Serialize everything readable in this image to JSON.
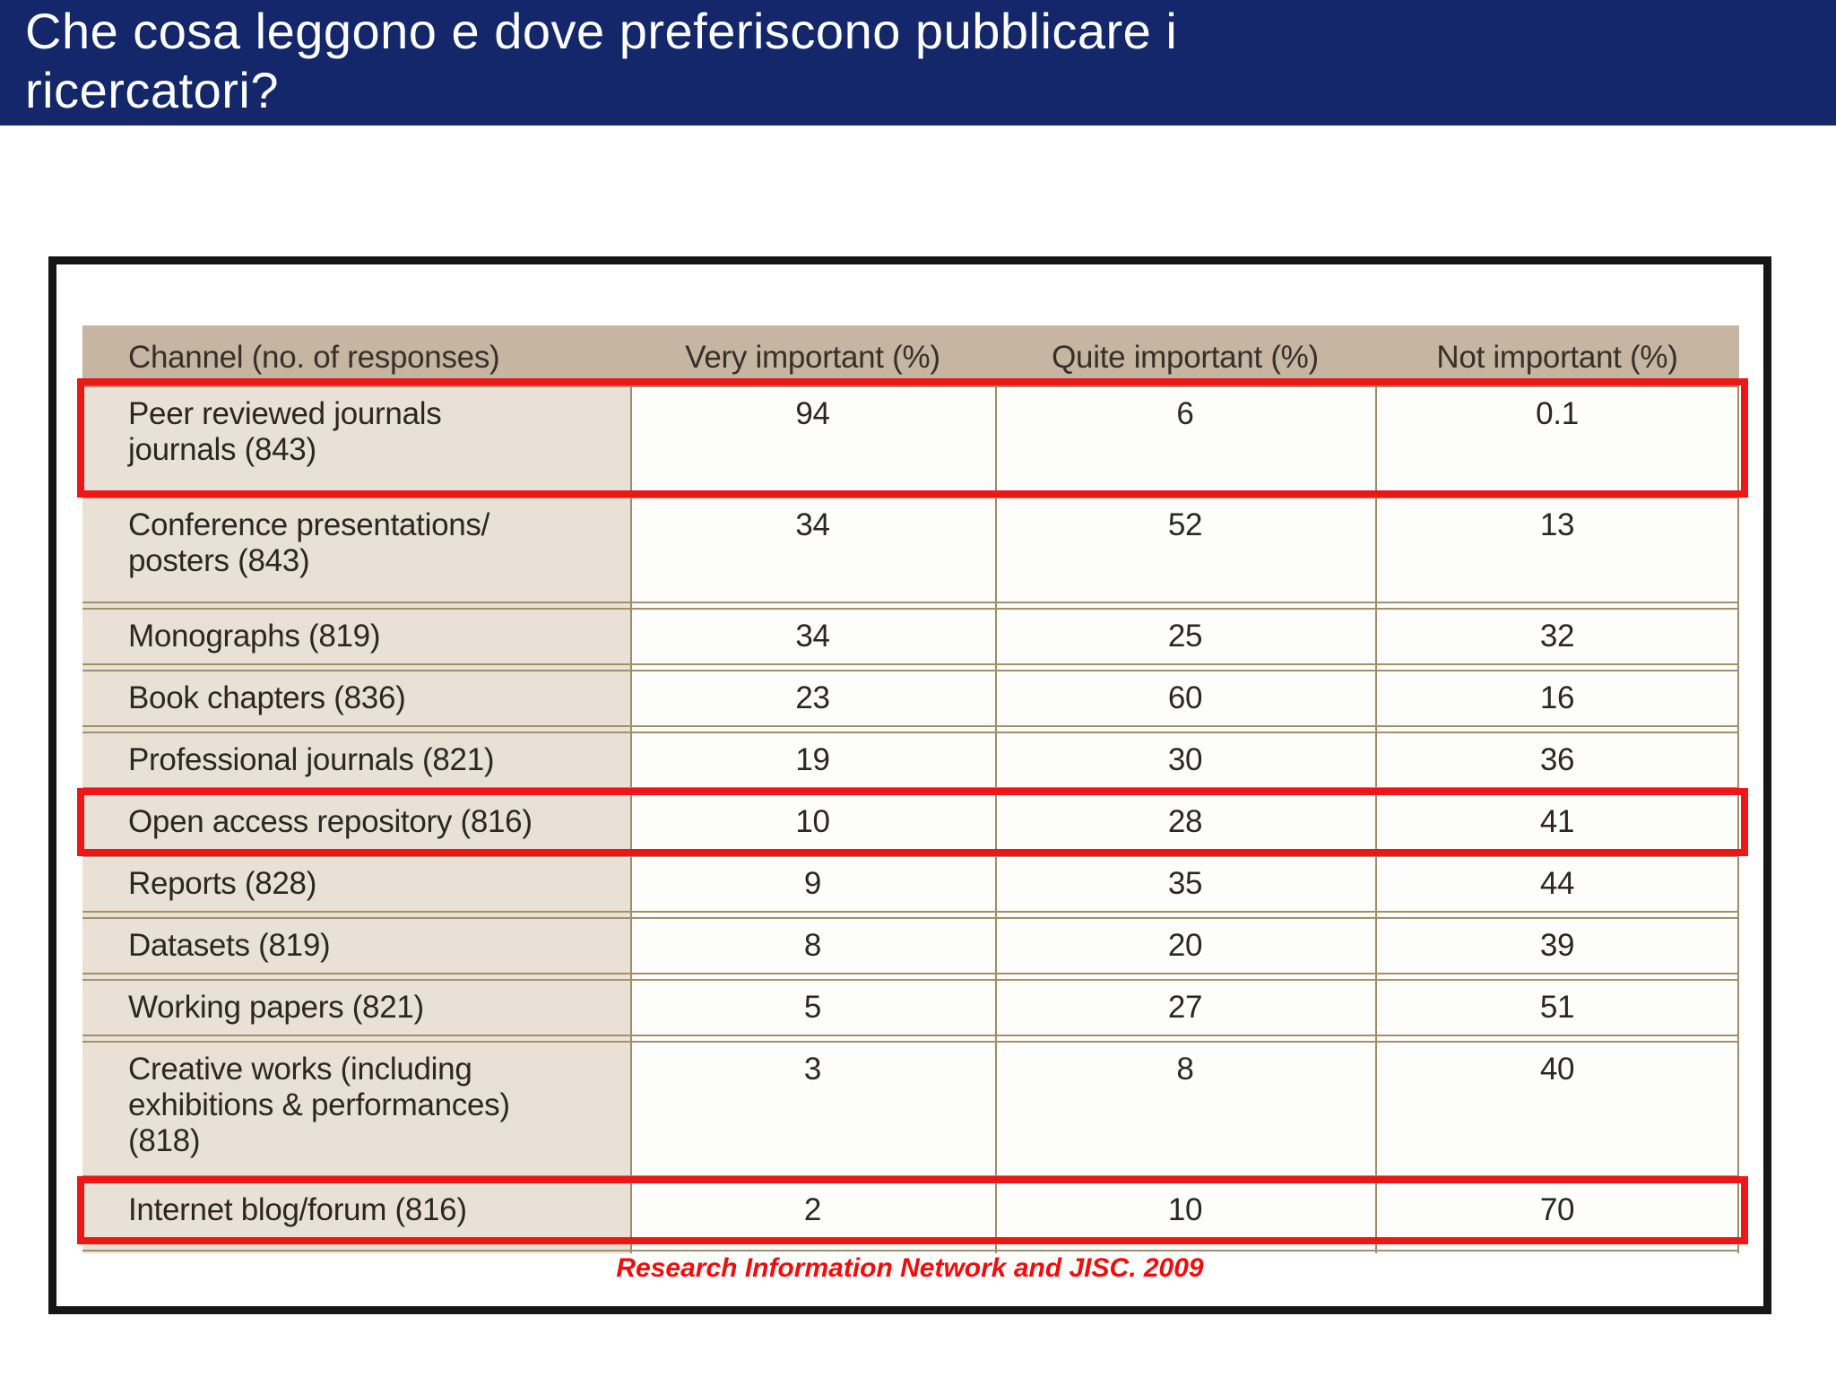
{
  "slide": {
    "title": "Che cosa leggono e dove preferiscono pubblicare i\nricercatori?",
    "caption": "Research Information Network and JISC. 2009"
  },
  "colors": {
    "title_bar_navy": "#13276a",
    "header_tan": "#c5b5a1",
    "label_beige": "#e9e1d5",
    "grid_line_tan": "#9f8c66",
    "highlight_red": "#ee1616",
    "caption_red": "#f40b0b",
    "frame_black": "#161616"
  },
  "table": {
    "columns": [
      "Channel (no. of responses)",
      "Very important (%)",
      "Quite important (%)",
      "Not important (%)"
    ],
    "rows": [
      {
        "label_lines": [
          "Peer reviewed journals",
          "journals (843)"
        ],
        "values": [
          "94",
          "6",
          "0.1"
        ],
        "highlighted": true
      },
      {
        "label_lines": [
          "Conference presentations/",
          "posters (843)"
        ],
        "values": [
          "34",
          "52",
          "13"
        ],
        "highlighted": false
      },
      {
        "label_lines": [
          "Monographs (819)"
        ],
        "values": [
          "34",
          "25",
          "32"
        ],
        "highlighted": false
      },
      {
        "label_lines": [
          "Book chapters (836)"
        ],
        "values": [
          "23",
          "60",
          "16"
        ],
        "highlighted": false
      },
      {
        "label_lines": [
          "Professional journals (821)"
        ],
        "values": [
          "19",
          "30",
          "36"
        ],
        "highlighted": false
      },
      {
        "label_lines": [
          "Open access repository (816)"
        ],
        "values": [
          "10",
          "28",
          "41"
        ],
        "highlighted": true
      },
      {
        "label_lines": [
          "Reports (828)"
        ],
        "values": [
          "9",
          "35",
          "44"
        ],
        "highlighted": false
      },
      {
        "label_lines": [
          "Datasets (819)"
        ],
        "values": [
          "8",
          "20",
          "39"
        ],
        "highlighted": false
      },
      {
        "label_lines": [
          "Working papers (821)"
        ],
        "values": [
          "5",
          "27",
          "51"
        ],
        "highlighted": false
      },
      {
        "label_lines": [
          "Creative works (including",
          "exhibitions & performances)",
          "(818)"
        ],
        "values": [
          "3",
          "8",
          "40"
        ],
        "highlighted": false
      },
      {
        "label_lines": [
          "Internet blog/forum (816)"
        ],
        "values": [
          "2",
          "10",
          "70"
        ],
        "highlighted": true
      }
    ]
  },
  "chart_data": {
    "type": "table",
    "title": "Che cosa leggono e dove preferiscono pubblicare i ricercatori?",
    "columns": [
      "Channel (no. of responses)",
      "Very important (%)",
      "Quite important (%)",
      "Not important (%)"
    ],
    "rows": [
      [
        "Peer reviewed journals journals (843)",
        94,
        6,
        0.1
      ],
      [
        "Conference presentations/ posters (843)",
        34,
        52,
        13
      ],
      [
        "Monographs (819)",
        34,
        25,
        32
      ],
      [
        "Book chapters (836)",
        23,
        60,
        16
      ],
      [
        "Professional journals (821)",
        19,
        30,
        36
      ],
      [
        "Open access repository (816)",
        10,
        28,
        41
      ],
      [
        "Reports (828)",
        9,
        35,
        44
      ],
      [
        "Datasets (819)",
        8,
        20,
        39
      ],
      [
        "Working papers (821)",
        5,
        27,
        51
      ],
      [
        "Creative works (including exhibitions & performances) (818)",
        3,
        8,
        40
      ],
      [
        "Internet blog/forum (816)",
        2,
        10,
        70
      ]
    ],
    "highlighted_rows": [
      "Peer reviewed journals journals (843)",
      "Open access repository (816)",
      "Internet blog/forum (816)"
    ],
    "source": "Research Information Network and JISC. 2009"
  }
}
